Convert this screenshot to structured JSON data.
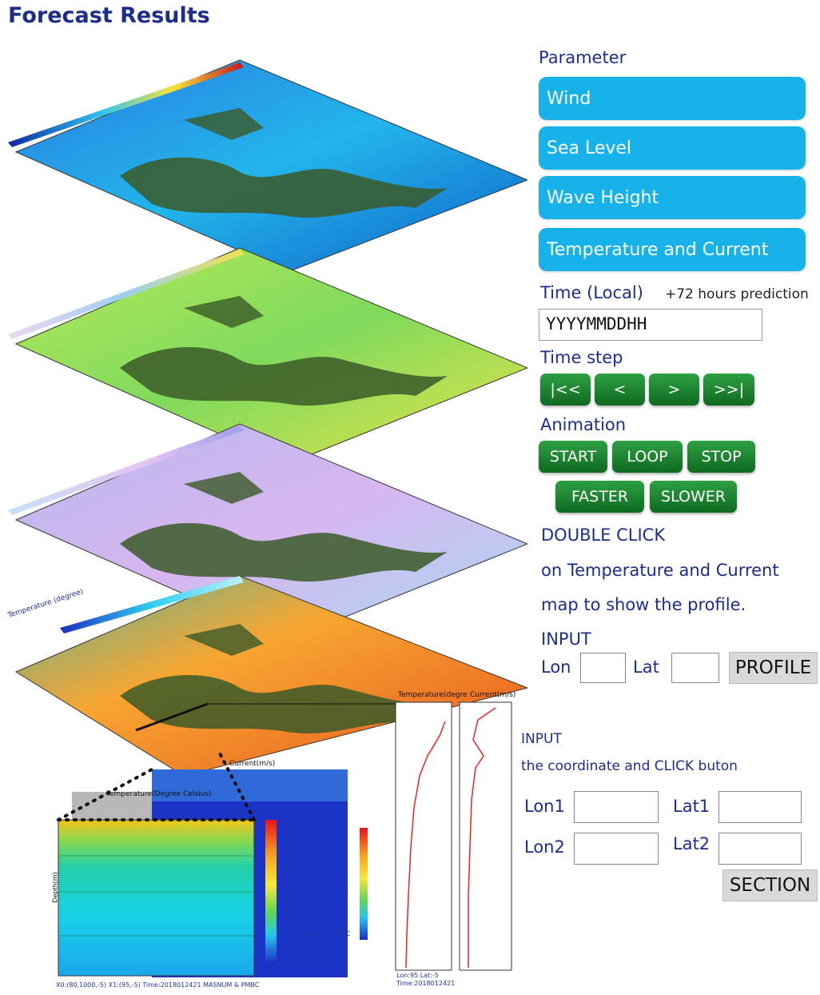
{
  "page": {
    "title": "Forecast Results"
  },
  "parameter": {
    "label": "Parameter",
    "buttons": [
      "Wind",
      "Sea Level",
      "Wave Height",
      "Temperature and Current"
    ]
  },
  "time": {
    "label": "Time (Local)",
    "note": "+72 hours prediction",
    "value": "YYYYMMDDHH"
  },
  "time_step": {
    "label": "Time step",
    "buttons": [
      "|<<",
      "<",
      ">",
      ">>|"
    ]
  },
  "animation": {
    "label": "Animation",
    "buttons": [
      "START",
      "LOOP",
      "STOP",
      "FASTER",
      "SLOWER"
    ]
  },
  "instructions": {
    "line1": "DOUBLE CLICK",
    "line2": "on Temperature and Current",
    "line3": "map to show the profile."
  },
  "profile_input": {
    "label": "INPUT",
    "lon_label": "Lon",
    "lat_label": "Lat",
    "button": "PROFILE"
  },
  "section_input": {
    "label1": "INPUT",
    "label2": "the coordinate and CLICK buton",
    "lon1": "Lon1",
    "lat1": "Lat1",
    "lon2": "Lon2",
    "lat2": "Lat2",
    "button": "SECTION"
  },
  "maps": {
    "layers": [
      "Wind",
      "Sea Level",
      "Wave Height",
      "Temperature and Current"
    ],
    "colors": {
      "wind": "#1aa0e6",
      "sealevel": "#8fe05a",
      "wave": "#c9b6f0",
      "temp": "#f39a26",
      "land": "#3b5a28"
    },
    "temp_axis_label": "Temperature (degree)"
  },
  "plots": {
    "section_temp_title": "Temperature(Degree Celsius)",
    "section_current_title": "Current(m/s)",
    "profile_temp_title": "Temperature(degre",
    "profile_current_title": "Current(m/s)",
    "depth_label": "Depth(m)",
    "section_footer": "X0:(80,1000,-5) X1:(95,-5) Time:2018012421 MASNUM & PMBC",
    "current_footer": "MASNUM & PMBC",
    "profile_footer1": "Lon:95 Lat:-5",
    "profile_footer2": "Time:2018012421"
  }
}
